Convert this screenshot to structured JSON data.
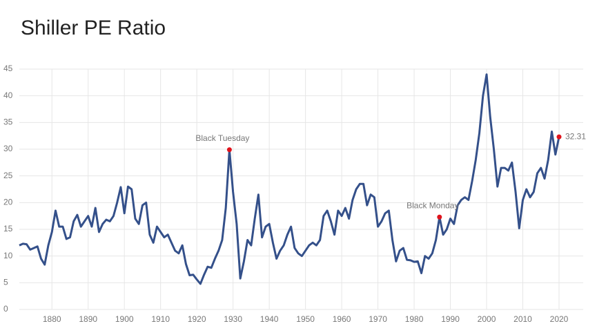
{
  "chart_data": {
    "type": "line",
    "title": "Shiller PE Ratio",
    "x": [
      1871,
      1872,
      1873,
      1874,
      1875,
      1876,
      1877,
      1878,
      1879,
      1880,
      1881,
      1882,
      1883,
      1884,
      1885,
      1886,
      1887,
      1888,
      1889,
      1890,
      1891,
      1892,
      1893,
      1894,
      1895,
      1896,
      1897,
      1898,
      1899,
      1900,
      1901,
      1902,
      1903,
      1904,
      1905,
      1906,
      1907,
      1908,
      1909,
      1910,
      1911,
      1912,
      1913,
      1914,
      1915,
      1916,
      1917,
      1918,
      1919,
      1920,
      1921,
      1922,
      1923,
      1924,
      1925,
      1926,
      1927,
      1928,
      1929,
      1930,
      1931,
      1932,
      1933,
      1934,
      1935,
      1936,
      1937,
      1938,
      1939,
      1940,
      1941,
      1942,
      1943,
      1944,
      1945,
      1946,
      1947,
      1948,
      1949,
      1950,
      1951,
      1952,
      1953,
      1954,
      1955,
      1956,
      1957,
      1958,
      1959,
      1960,
      1961,
      1962,
      1963,
      1964,
      1965,
      1966,
      1967,
      1968,
      1969,
      1970,
      1971,
      1972,
      1973,
      1974,
      1975,
      1976,
      1977,
      1978,
      1979,
      1980,
      1981,
      1982,
      1983,
      1984,
      1985,
      1986,
      1987,
      1988,
      1989,
      1990,
      1991,
      1992,
      1993,
      1994,
      1995,
      1996,
      1997,
      1998,
      1999,
      2000,
      2001,
      2002,
      2003,
      2004,
      2005,
      2006,
      2007,
      2008,
      2009,
      2010,
      2011,
      2012,
      2013,
      2014,
      2015,
      2016,
      2017,
      2018,
      2019,
      2020
    ],
    "series": [
      {
        "color": "#34508a",
        "values": [
          12.0,
          12.3,
          12.2,
          11.2,
          11.5,
          11.8,
          9.5,
          8.4,
          12.0,
          14.5,
          18.5,
          15.5,
          15.5,
          13.2,
          13.5,
          16.5,
          17.7,
          15.5,
          16.5,
          17.5,
          15.5,
          19.0,
          14.5,
          16.0,
          16.8,
          16.5,
          17.5,
          20.0,
          22.9,
          18.0,
          23.0,
          22.5,
          17.0,
          16.0,
          19.5,
          20.0,
          14.0,
          12.5,
          15.5,
          14.5,
          13.5,
          14.0,
          12.5,
          11.0,
          10.5,
          12.0,
          8.5,
          6.4,
          6.5,
          5.6,
          4.8,
          6.5,
          8.0,
          7.8,
          9.5,
          11.0,
          13.0,
          19.0,
          29.9,
          22.0,
          16.0,
          5.8,
          9.0,
          13.0,
          12.0,
          17.0,
          21.5,
          13.5,
          15.5,
          16.0,
          12.5,
          9.5,
          11.0,
          12.0,
          14.0,
          15.5,
          11.5,
          10.5,
          10.0,
          11.0,
          12.0,
          12.5,
          12.0,
          13.0,
          17.5,
          18.5,
          16.5,
          14.0,
          18.5,
          17.5,
          19.0,
          17.0,
          20.5,
          22.5,
          23.5,
          23.5,
          19.5,
          21.5,
          21.0,
          15.5,
          16.5,
          18.0,
          18.5,
          13.0,
          9.0,
          11.0,
          11.5,
          9.3,
          9.2,
          8.9,
          9.0,
          6.8,
          10.0,
          9.5,
          10.5,
          13.0,
          17.3,
          14.0,
          15.0,
          17.0,
          16.0,
          19.5,
          20.5,
          21.0,
          20.5,
          24.0,
          28.0,
          33.0,
          40.0,
          44.0,
          36.0,
          30.0,
          23.0,
          26.5,
          26.5,
          26.0,
          27.5,
          22.0,
          15.2,
          20.5,
          22.5,
          21.0,
          22.0,
          25.5,
          26.5,
          24.5,
          28.0,
          33.3,
          29.0,
          32.31
        ]
      }
    ],
    "annotations": [
      {
        "x": 1929,
        "y": 29.9,
        "text": "Black Tuesday"
      },
      {
        "x": 1987,
        "y": 17.3,
        "text": "Black Monday"
      }
    ],
    "annotation_color": "#e0131c",
    "xlim": [
      1871,
      2020
    ],
    "ylim": [
      0,
      45
    ],
    "xticks": [
      1880,
      1890,
      1900,
      1910,
      1920,
      1930,
      1940,
      1950,
      1960,
      1970,
      1980,
      1990,
      2000,
      2010,
      2020
    ],
    "yticks": [
      0,
      5,
      10,
      15,
      20,
      25,
      30,
      35,
      40,
      45
    ],
    "grid": true
  }
}
